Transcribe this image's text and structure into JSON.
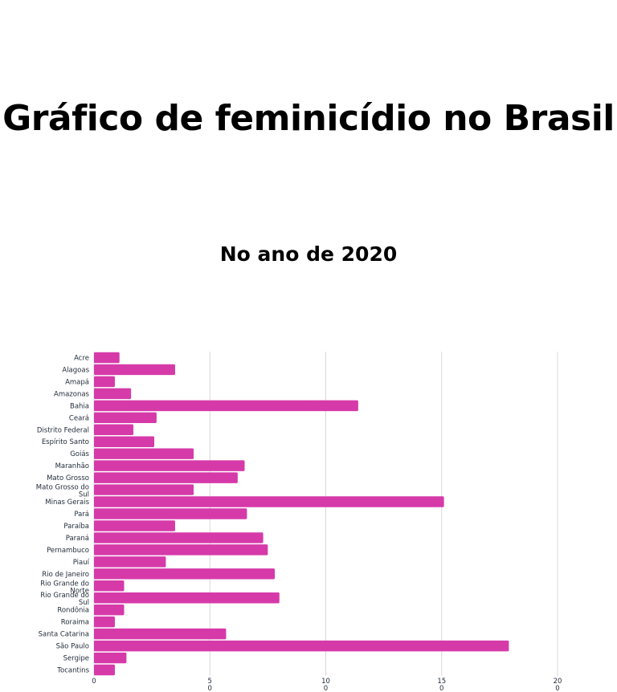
{
  "page": {
    "title": "Gráfico de feminicídio no Brasil",
    "subtitle": "No ano de 2020"
  },
  "colors": {
    "bar": "#d63aa9",
    "grid": "#d9d9d9"
  },
  "chart_data": {
    "type": "bar",
    "orientation": "horizontal",
    "title": "",
    "xlabel": "",
    "ylabel": "",
    "xlim": [
      0,
      200
    ],
    "x_ticks": [
      {
        "value": 0,
        "label": "0"
      },
      {
        "value": 50,
        "label": "5\n0"
      },
      {
        "value": 100,
        "label": "10\n0"
      },
      {
        "value": 150,
        "label": "15\n0"
      },
      {
        "value": 200,
        "label": "20\n0"
      }
    ],
    "grid": true,
    "legend": "none",
    "categories": [
      "Acre",
      "Alagoas",
      "Amapá",
      "Amazonas",
      "Bahia",
      "Ceará",
      "Distrito Federal",
      "Espírito Santo",
      "Goiás",
      "Maranhão",
      "Mato Grosso",
      "Mato Grosso do Sul",
      "Minas Gerais",
      "Pará",
      "Paraíba",
      "Paraná",
      "Pernambuco",
      "Piauí",
      "Rio de Janeiro",
      "Rio Grande do Norte",
      "Rio Grande do Sul",
      "Rondônia",
      "Roraima",
      "Santa Catarina",
      "São Paulo",
      "Sergipe",
      "Tocantins"
    ],
    "values": [
      11,
      35,
      9,
      16,
      114,
      27,
      17,
      26,
      43,
      65,
      62,
      43,
      151,
      66,
      35,
      73,
      75,
      31,
      78,
      13,
      80,
      13,
      9,
      57,
      179,
      14,
      9
    ]
  }
}
